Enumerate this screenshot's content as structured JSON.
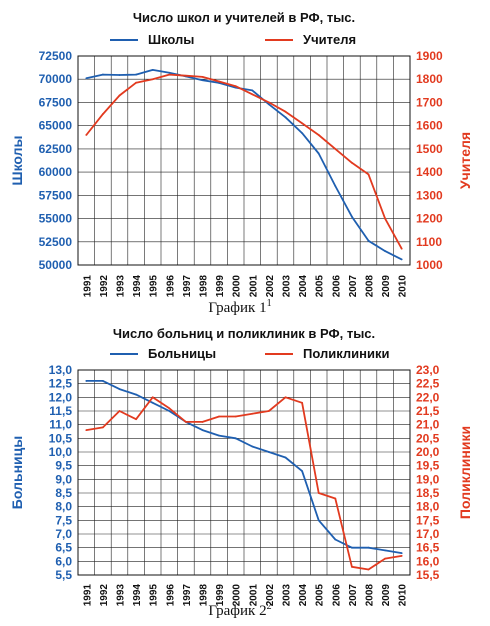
{
  "chart_data": [
    {
      "type": "line",
      "title": "Число школ и учителей в РФ, тыс.",
      "caption": "График 1",
      "caption_sup": "1",
      "x": [
        1991,
        1992,
        1993,
        1994,
        1995,
        1996,
        1997,
        1998,
        1999,
        2000,
        2001,
        2002,
        2003,
        2004,
        2005,
        2006,
        2007,
        2008,
        2009,
        2010
      ],
      "axis_left": {
        "label": "Школы",
        "min": 50000,
        "max": 72500,
        "step": 2500,
        "ticks": [
          "50000",
          "52500",
          "55000",
          "57500",
          "60000",
          "62500",
          "65000",
          "67500",
          "70000",
          "72500"
        ]
      },
      "axis_right": {
        "label": "Учителя",
        "min": 1000,
        "max": 1900,
        "step": 100,
        "ticks": [
          "1000",
          "1100",
          "1200",
          "1300",
          "1400",
          "1500",
          "1600",
          "1700",
          "1800",
          "1900"
        ]
      },
      "series": [
        {
          "name": "Школы",
          "axis": "left",
          "color": "#1f5fb0",
          "values": [
            70100,
            70500,
            70450,
            70500,
            71000,
            70700,
            70300,
            69900,
            69600,
            69100,
            68800,
            67300,
            65900,
            64200,
            62000,
            58500,
            55200,
            52600,
            51500,
            50600
          ]
        },
        {
          "name": "Учителя",
          "axis": "right",
          "color": "#e23a1f",
          "values": [
            1560,
            1650,
            1730,
            1785,
            1800,
            1820,
            1815,
            1810,
            1790,
            1770,
            1735,
            1700,
            1660,
            1610,
            1560,
            1500,
            1440,
            1390,
            1200,
            1070
          ]
        }
      ],
      "grid": true,
      "legend": "top"
    },
    {
      "type": "line",
      "title": "Число больниц и поликлиник в РФ, тыс.",
      "caption": "График 2",
      "caption_sup": "2",
      "x": [
        1991,
        1992,
        1993,
        1994,
        1995,
        1996,
        1997,
        1998,
        1999,
        2000,
        2001,
        2002,
        2003,
        2004,
        2005,
        2006,
        2007,
        2008,
        2009,
        2010
      ],
      "axis_left": {
        "label": "Больницы",
        "min": 5.5,
        "max": 13.0,
        "step": 0.5,
        "ticks": [
          "5,5",
          "6,0",
          "6,5",
          "7,0",
          "7,5",
          "8,0",
          "8,5",
          "9,0",
          "9,5",
          "10,0",
          "10,5",
          "11,0",
          "11,5",
          "12,0",
          "12,5",
          "13,0"
        ]
      },
      "axis_right": {
        "label": "Поликлиники",
        "min": 15.5,
        "max": 23.0,
        "step": 0.5,
        "ticks": [
          "15,5",
          "16,0",
          "16,5",
          "17,0",
          "17,5",
          "18,0",
          "18,5",
          "19,0",
          "19,5",
          "20,0",
          "20,5",
          "21,0",
          "21,5",
          "22,0",
          "22,5",
          "23,0"
        ]
      },
      "series": [
        {
          "name": "Больницы",
          "axis": "left",
          "color": "#1f5fb0",
          "values": [
            12.6,
            12.6,
            12.3,
            12.1,
            11.8,
            11.5,
            11.1,
            10.8,
            10.6,
            10.5,
            10.2,
            10.0,
            9.8,
            9.3,
            7.5,
            6.8,
            6.5,
            6.5,
            6.4,
            6.3
          ]
        },
        {
          "name": "Поликлиники",
          "axis": "right",
          "color": "#e23a1f",
          "values": [
            20.8,
            20.9,
            21.5,
            21.2,
            22.0,
            21.6,
            21.1,
            21.1,
            21.3,
            21.3,
            21.4,
            21.5,
            22.0,
            21.8,
            18.5,
            18.3,
            15.8,
            15.7,
            16.1,
            16.2
          ]
        }
      ],
      "grid": true,
      "legend": "top"
    }
  ]
}
